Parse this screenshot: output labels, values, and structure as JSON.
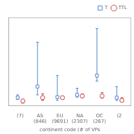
{
  "chart_data": {
    "type": "scatter",
    "xlabel": "continent code (# of VPs",
    "categories": [
      "(7)",
      "AS\n(846)",
      "EU\n(9691)",
      "NA\n(2307)",
      "OC\n(267)",
      "(2"
    ],
    "series": [
      {
        "name": "T",
        "color": "#5588cc",
        "marker": "square",
        "values": [
          1.5,
          3.5,
          1.6,
          2.0,
          5.5,
          1.5
        ],
        "lo": [
          1.2,
          2.0,
          1.0,
          1.6,
          4.5,
          1.0
        ],
        "hi": [
          2.0,
          11.5,
          5.5,
          3.2,
          14.0,
          3.5
        ]
      },
      {
        "name": "TTL",
        "color": "#cc4444",
        "marker": "circle",
        "values": [
          0.9,
          1.5,
          1.5,
          1.8,
          1.8,
          1.0
        ],
        "lo": [
          0.5,
          1.0,
          1.2,
          1.5,
          1.4,
          0.8
        ],
        "hi": [
          1.2,
          2.2,
          1.8,
          2.2,
          2.4,
          1.5
        ]
      }
    ],
    "ylim": [
      0,
      16
    ],
    "yticks": [],
    "tick_labels": "x",
    "grid": false,
    "legend": "upper right"
  }
}
